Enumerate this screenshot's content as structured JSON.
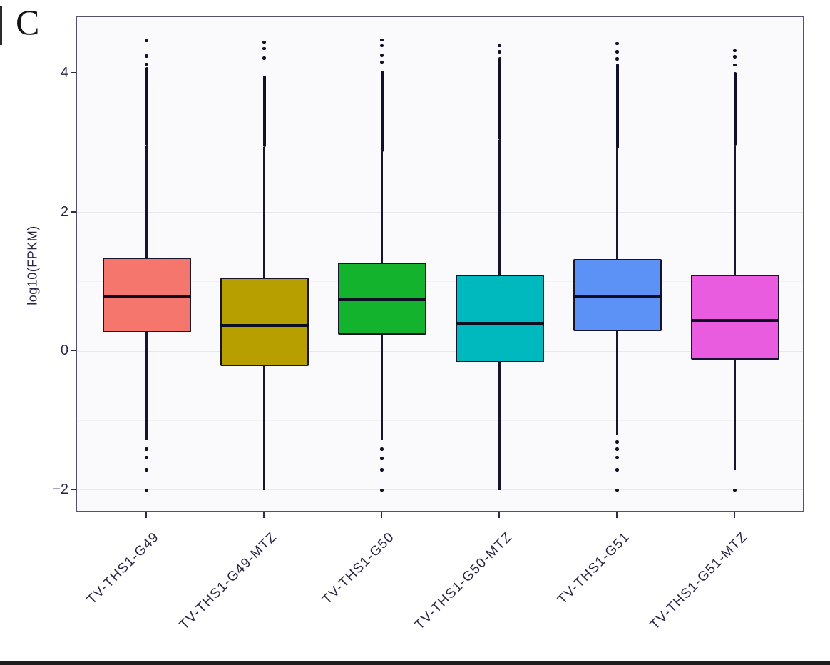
{
  "figure": {
    "panel_label": "C",
    "background": "#ffffff",
    "bottom_bar_color": "#1e1e1e"
  },
  "style": {
    "panel_bg": "#fafafd",
    "panel_border": "#55506e",
    "grid_major": "#e7e7ef",
    "grid_minor": "#f1f1f7",
    "line_color": "#16142f",
    "median_color": "#0d0d22",
    "tick_color": "#2e2a45",
    "text_color": "#2b2345"
  },
  "chart_data": {
    "type": "boxplot",
    "title": "",
    "xlabel": "",
    "ylabel": "log10(FPKM)",
    "ylim": [
      -2.32,
      4.81
    ],
    "grid": "horizontal major + minor, no vertical",
    "legend": "none",
    "y_major_ticks": [
      {
        "value": 4,
        "label": "4"
      },
      {
        "value": 2,
        "label": "2"
      },
      {
        "value": 0,
        "label": "0"
      },
      {
        "value": -2,
        "label": "−2"
      }
    ],
    "y_minor_ticks": [
      3,
      1,
      -1
    ],
    "categories": [
      "TV-THS1-G49",
      "TV-THS1-G49-MTZ",
      "TV-THS1-G50",
      "TV-THS1-G50-MTZ",
      "TV-THS1-G51",
      "TV-THS1-G51-MTZ"
    ],
    "series": [
      {
        "label": "TV-THS1-G49",
        "color": "#F5766C",
        "whisker_low": -1.27,
        "q1": 0.27,
        "median": 0.79,
        "q3": 1.35,
        "whisker_high": 2.96,
        "outlier_band_high": {
          "top": 4.09,
          "bottom": 2.96
        },
        "outlier_dots_high": [
          4.47,
          4.25,
          4.13
        ],
        "outlier_dots_low": [
          -1.41,
          -1.53,
          -1.71,
          -2.0
        ]
      },
      {
        "label": "TV-THS1-G49-MTZ",
        "color": "#B79F00",
        "whisker_low": -2.0,
        "q1": -0.21,
        "median": 0.37,
        "q3": 1.06,
        "whisker_high": 2.94,
        "outlier_band_high": {
          "top": 3.97,
          "bottom": 2.94
        },
        "outlier_dots_high": [
          4.45,
          4.36,
          4.22
        ],
        "outlier_dots_low": []
      },
      {
        "label": "TV-THS1-G50",
        "color": "#14B32E",
        "whisker_low": -1.28,
        "q1": 0.24,
        "median": 0.74,
        "q3": 1.28,
        "whisker_high": 2.87,
        "outlier_band_high": {
          "top": 4.04,
          "bottom": 2.87
        },
        "outlier_dots_high": [
          4.48,
          4.4,
          4.26,
          4.16
        ],
        "outlier_dots_low": [
          -1.41,
          -1.54,
          -1.71,
          -2.0
        ]
      },
      {
        "label": "TV-THS1-G50-MTZ",
        "color": "#00B9BF",
        "whisker_low": -2.0,
        "q1": -0.16,
        "median": 0.4,
        "q3": 1.1,
        "whisker_high": 3.04,
        "outlier_band_high": {
          "top": 4.23,
          "bottom": 3.04
        },
        "outlier_dots_high": [
          4.4,
          4.31
        ],
        "outlier_dots_low": []
      },
      {
        "label": "TV-THS1-G51",
        "color": "#5C92F5",
        "whisker_low": -1.21,
        "q1": 0.29,
        "median": 0.78,
        "q3": 1.33,
        "whisker_high": 2.92,
        "outlier_band_high": {
          "top": 4.14,
          "bottom": 2.92
        },
        "outlier_dots_high": [
          4.43,
          4.31,
          4.21
        ],
        "outlier_dots_low": [
          -1.31,
          -1.41,
          -1.53,
          -1.71,
          -2.0
        ]
      },
      {
        "label": "TV-THS1-G51-MTZ",
        "color": "#E95CDF",
        "whisker_low": -1.71,
        "q1": -0.12,
        "median": 0.44,
        "q3": 1.1,
        "whisker_high": 2.96,
        "outlier_band_high": {
          "top": 4.02,
          "bottom": 2.96
        },
        "outlier_dots_high": [
          4.33,
          4.24,
          4.12
        ],
        "outlier_dots_low": [
          -2.0
        ]
      }
    ]
  }
}
